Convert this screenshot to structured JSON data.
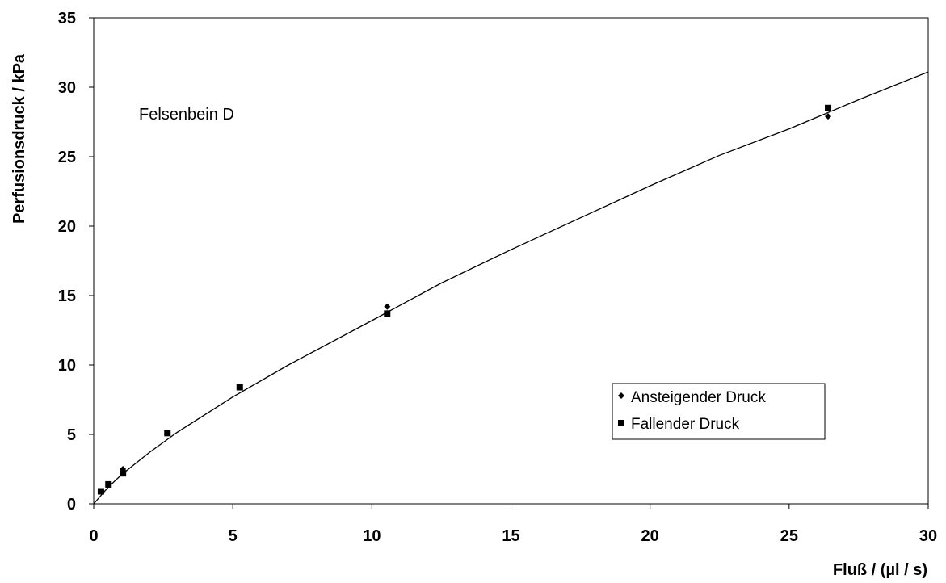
{
  "chart_data": {
    "type": "scatter",
    "title": "",
    "annotation": "Felsenbein D",
    "xlabel": "Fluß / (µl / s)",
    "ylabel": "Perfusionsdruck / kPa",
    "xlim": [
      0,
      30
    ],
    "ylim": [
      0,
      35
    ],
    "xticks": [
      "0",
      "5",
      "10",
      "15",
      "20",
      "25",
      "30"
    ],
    "yticks": [
      "0",
      "5",
      "10",
      "15",
      "20",
      "25",
      "30",
      "35"
    ],
    "grid": false,
    "legend_position": "bottom-right",
    "series": [
      {
        "name": "Ansteigender Druck",
        "marker": "diamond",
        "color": "#000000",
        "x": [
          0.26,
          0.53,
          1.05,
          2.65,
          5.25,
          10.55,
          26.4
        ],
        "y": [
          0.9,
          1.4,
          2.5,
          5.1,
          8.4,
          14.2,
          27.9
        ]
      },
      {
        "name": "Fallender Druck",
        "marker": "square",
        "color": "#000000",
        "x": [
          0.26,
          0.53,
          1.05,
          2.65,
          5.25,
          10.55,
          26.4
        ],
        "y": [
          0.9,
          1.4,
          2.2,
          5.1,
          8.4,
          13.7,
          28.5
        ]
      }
    ],
    "fit_curve": {
      "type": "line",
      "color": "#000000",
      "x": [
        0,
        0.5,
        1,
        2,
        3,
        5,
        7,
        10,
        12.5,
        15,
        17.5,
        20,
        22.5,
        25,
        27.5,
        30
      ],
      "y": [
        0,
        1.15,
        2.1,
        3.7,
        5.15,
        7.7,
        10.0,
        13.2,
        15.9,
        18.3,
        20.6,
        22.9,
        25.1,
        27.0,
        29.1,
        31.1
      ]
    }
  }
}
